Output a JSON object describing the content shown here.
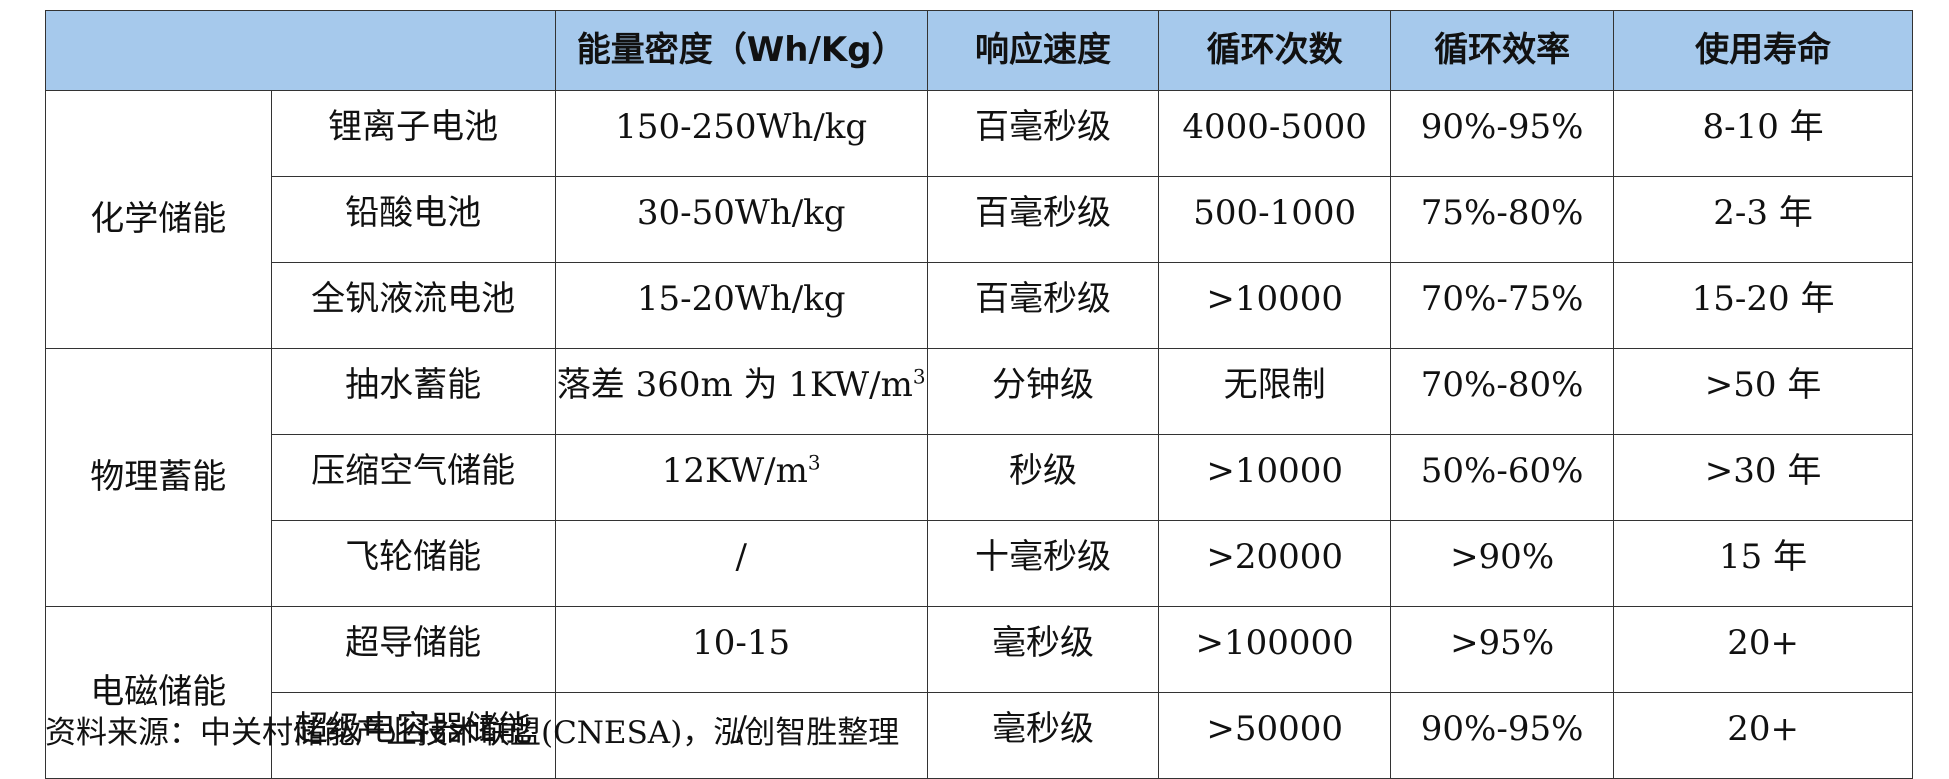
{
  "table": {
    "headers": [
      "",
      "能量密度（Wh/Kg）",
      "响应速度",
      "循环次数",
      "循环效率",
      "使用寿命"
    ],
    "groups": [
      {
        "category": "化学储能",
        "rows": [
          {
            "name": "锂离子电池",
            "density": "150-250Wh/kg",
            "response": "百毫秒级",
            "cycles": "4000-5000",
            "efficiency": "90%-95%",
            "lifespan": "8-10 年"
          },
          {
            "name": "铅酸电池",
            "density": "30-50Wh/kg",
            "response": "百毫秒级",
            "cycles": "500-1000",
            "efficiency": "75%-80%",
            "lifespan": "2-3 年"
          },
          {
            "name": "全钒液流电池",
            "density": "15-20Wh/kg",
            "response": "百毫秒级",
            "cycles": ">10000",
            "efficiency": "70%-75%",
            "lifespan": "15-20 年"
          }
        ]
      },
      {
        "category": "物理蓄能",
        "rows": [
          {
            "name": "抽水蓄能",
            "density": "落差 360m 为 1KW/m",
            "density_sup": "3",
            "response": "分钟级",
            "cycles": "无限制",
            "efficiency": "70%-80%",
            "lifespan": ">50 年"
          },
          {
            "name": "压缩空气储能",
            "density": "12KW/m",
            "density_sup": "3",
            "response": "秒级",
            "cycles": ">10000",
            "efficiency": "50%-60%",
            "lifespan": ">30 年"
          },
          {
            "name": "飞轮储能",
            "density": "/",
            "response": "十毫秒级",
            "cycles": ">20000",
            "efficiency": ">90%",
            "lifespan": "15 年"
          }
        ]
      },
      {
        "category": "电磁储能",
        "rows": [
          {
            "name": "超导储能",
            "density": "10-15",
            "response": "毫秒级",
            "cycles": ">100000",
            "efficiency": ">95%",
            "lifespan": "20+"
          },
          {
            "name": "超级电容器储能",
            "density": "/",
            "response": "毫秒级",
            "cycles": ">50000",
            "efficiency": "90%-95%",
            "lifespan": "20+"
          }
        ]
      }
    ]
  },
  "source": "资料来源：中关村储能产业技术联盟(CNESA)，泓创智胜整理",
  "colors": {
    "header_bg": "#a6c9ec",
    "border": "#333333"
  }
}
